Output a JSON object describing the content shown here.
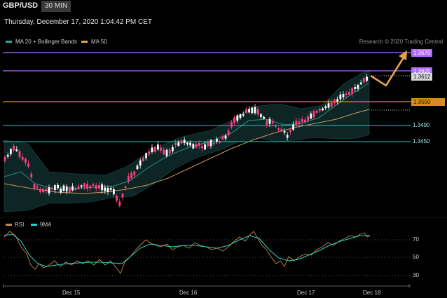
{
  "header": {
    "symbol": "GBP/USD",
    "interval": "30 MIN"
  },
  "datetime": "Thursday, December 17, 2020 1:04:42 PM CET",
  "legend": [
    {
      "label": "MA 20 + Bollinger Bands",
      "color": "#2fa8a0"
    },
    {
      "label": "MA 50",
      "color": "#d9a95c"
    }
  ],
  "copyright": "Research © 2020 Trading Central",
  "colors": {
    "resistance": "#b36bff",
    "pivot": "#d98c1a",
    "support": "#2ec4c4",
    "bull_candle": "#ffffff",
    "bear_candle": "#ff3e7f",
    "projection": "#e2a050",
    "rsi": "#c08a3e",
    "rsi_ma": "#2ad1d1"
  },
  "levels": [
    {
      "label": "1.3670",
      "value": 1.367,
      "role": "resistance-2"
    },
    {
      "label": "1.3625",
      "value": 1.3625,
      "role": "resistance-1"
    },
    {
      "label": "1.3612",
      "value": 1.3612,
      "role": "last-price"
    },
    {
      "label": "1.3550",
      "value": 1.355,
      "role": "pivot"
    },
    {
      "label": "1.3490",
      "value": 1.349,
      "role": "support-1"
    },
    {
      "label": "1.3450",
      "value": 1.345,
      "role": "support-2"
    }
  ],
  "rsi_panel": {
    "legend": [
      {
        "label": "RSI",
        "color": "#c08a3e"
      },
      {
        "label": "9MA",
        "color": "#2ad1d1"
      }
    ],
    "levels": [
      "70",
      "50",
      "30"
    ]
  },
  "x_axis": {
    "dates": [
      "Dec 15",
      "Dec 16",
      "Dec 17",
      "Dec 18"
    ]
  }
}
